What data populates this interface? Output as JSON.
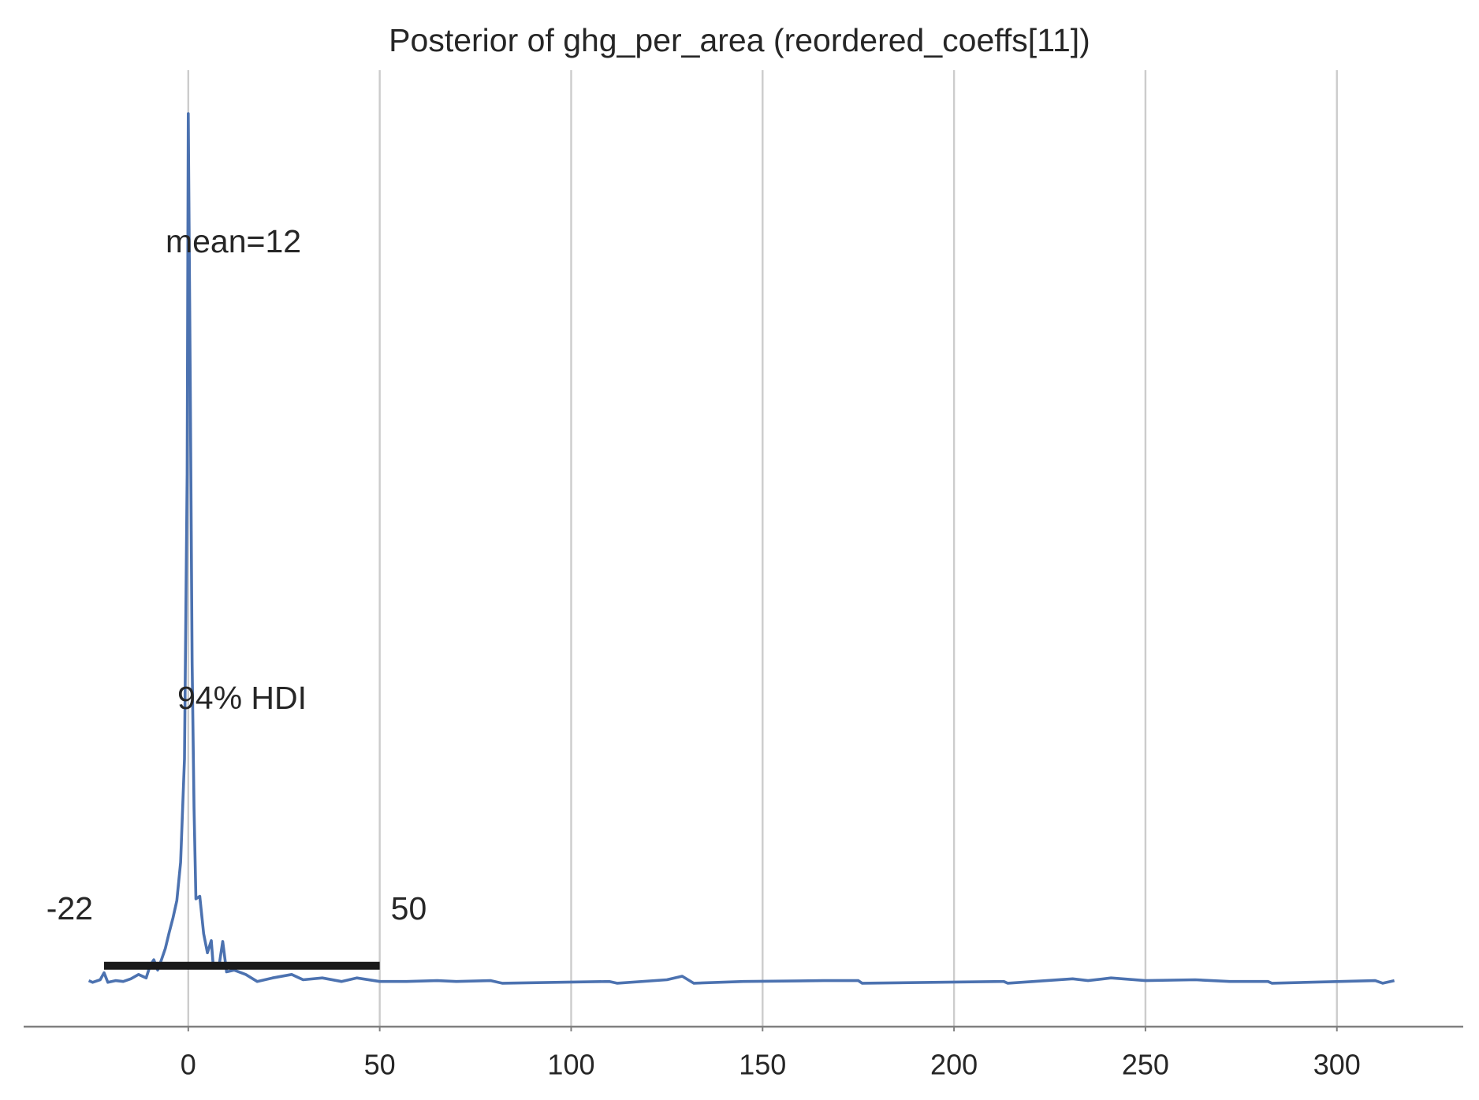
{
  "chart_data": {
    "type": "line",
    "title": "Posterior of ghg_per_area (reordered_coeffs[11])",
    "x": [
      -26,
      -25,
      -23,
      -22,
      -21,
      -19,
      -17,
      -15,
      -13,
      -11,
      -10,
      -9,
      -8,
      -7,
      -6,
      -5,
      -4,
      -3,
      -2,
      -1,
      -0.3,
      0,
      0.5,
      1,
      1.5,
      2,
      3,
      4,
      5,
      6,
      6.5,
      8,
      9,
      10,
      12,
      15,
      18,
      22,
      27,
      30,
      35,
      40,
      44,
      50,
      57,
      65,
      70,
      79,
      82,
      110,
      112,
      125,
      129,
      132,
      145,
      166,
      175,
      176,
      213,
      214,
      231,
      235,
      241,
      250,
      263,
      272,
      278,
      282,
      283,
      310,
      312,
      315
    ],
    "series": [
      {
        "name": "ghg_per_area",
        "color": "#4c72b0",
        "values": [
          0.003,
          0.001,
          0.004,
          0.012,
          0.001,
          0.003,
          0.002,
          0.005,
          0.01,
          0.006,
          0.02,
          0.027,
          0.015,
          0.027,
          0.04,
          0.058,
          0.075,
          0.095,
          0.139,
          0.258,
          0.586,
          1.0,
          0.695,
          0.368,
          0.202,
          0.097,
          0.1,
          0.057,
          0.035,
          0.049,
          0.021,
          0.019,
          0.048,
          0.013,
          0.015,
          0.01,
          0.002,
          0.006,
          0.01,
          0.004,
          0.006,
          0.002,
          0.006,
          0.002,
          0.002,
          0.003,
          0.002,
          0.003,
          0,
          0.002,
          0,
          0.004,
          0.008,
          0,
          0.002,
          0.003,
          0.003,
          0,
          0.002,
          0,
          0.005,
          0.003,
          0.006,
          0.003,
          0.004,
          0.002,
          0.002,
          0.002,
          0,
          0.003,
          0,
          0.003
        ]
      }
    ],
    "hdi": [
      -22,
      50
    ],
    "hdi_y": 0.02,
    "hdi_label": "94% HDI",
    "mean_label": "mean=12",
    "xlim": [
      -43,
      333
    ],
    "xticks": [
      0,
      50,
      100,
      150,
      200,
      250,
      300
    ],
    "ylim": [
      -0.05,
      1.05
    ],
    "grid": true
  }
}
